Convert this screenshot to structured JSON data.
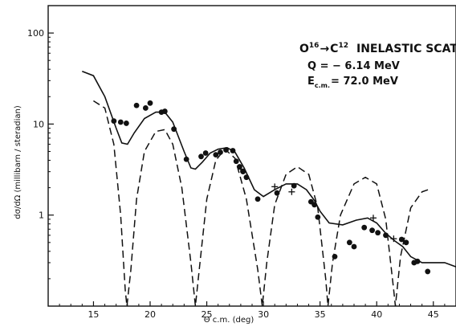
{
  "chart_data": {
    "type": "scatter",
    "x_axis": {
      "range": [
        11,
        47
      ],
      "ticks": [
        15,
        20,
        25,
        30,
        35,
        40,
        45
      ],
      "label": "Θ c.m.   (deg)"
    },
    "y_axis": {
      "scale": "log",
      "range": [
        0.1,
        200
      ],
      "ticks": [
        1,
        10,
        100
      ],
      "tick_labels": [
        "1",
        "10",
        "100"
      ],
      "label": "dσ/dΩ  (millibarn / steradian)"
    },
    "annotations": {
      "reaction": "O",
      "reaction_sup1": "16",
      "arrow": "→",
      "product": "C",
      "product_sup": "12",
      "title_rest": "INELASTIC SCATTERING",
      "q_value": "Q = − 6.14 MeV",
      "energy_label": "E",
      "energy_sub": "c.m.",
      "energy_value": "= 72.0 MeV"
    },
    "series": [
      {
        "kind": "solid-curve",
        "points": [
          [
            14,
            38
          ],
          [
            15,
            34
          ],
          [
            16,
            20
          ],
          [
            17,
            9
          ],
          [
            17.5,
            6.2
          ],
          [
            18,
            6
          ],
          [
            18.6,
            8
          ],
          [
            19.5,
            11.5
          ],
          [
            20.5,
            13.5
          ],
          [
            21.3,
            13.5
          ],
          [
            22,
            10.5
          ],
          [
            23,
            5
          ],
          [
            23.6,
            3.3
          ],
          [
            24,
            3.2
          ],
          [
            24.6,
            3.8
          ],
          [
            25.3,
            4.8
          ],
          [
            26,
            5.3
          ],
          [
            26.8,
            5.5
          ],
          [
            27.5,
            4.9
          ],
          [
            28.3,
            3.3
          ],
          [
            29.2,
            1.9
          ],
          [
            30,
            1.6
          ],
          [
            31,
            1.9
          ],
          [
            32,
            2.2
          ],
          [
            33,
            2.2
          ],
          [
            33.8,
            1.9
          ],
          [
            34.5,
            1.45
          ],
          [
            35,
            1.1
          ],
          [
            35.8,
            0.82
          ],
          [
            37,
            0.78
          ],
          [
            38.2,
            0.88
          ],
          [
            39.2,
            0.93
          ],
          [
            40,
            0.82
          ],
          [
            40.8,
            0.63
          ],
          [
            41.6,
            0.52
          ],
          [
            42.3,
            0.45
          ],
          [
            43,
            0.35
          ],
          [
            44,
            0.3
          ],
          [
            45,
            0.3
          ],
          [
            46,
            0.3
          ],
          [
            47,
            0.27
          ]
        ]
      },
      {
        "kind": "dashed-curve",
        "points": [
          [
            15,
            18
          ],
          [
            16,
            15
          ],
          [
            16.8,
            6
          ],
          [
            17.4,
            1
          ],
          [
            17.8,
            0.15
          ],
          [
            17.95,
            0.1
          ],
          [
            18.3,
            0.25
          ],
          [
            18.8,
            1.5
          ],
          [
            19.5,
            5
          ],
          [
            20.5,
            8.3
          ],
          [
            21.3,
            8.7
          ],
          [
            22,
            6
          ],
          [
            22.8,
            2
          ],
          [
            23.6,
            0.3
          ],
          [
            24,
            0.1
          ],
          [
            24.4,
            0.3
          ],
          [
            25,
            1.5
          ],
          [
            25.8,
            4
          ],
          [
            26.6,
            5.3
          ],
          [
            27.5,
            4.2
          ],
          [
            28.5,
            1.5
          ],
          [
            29.5,
            0.25
          ],
          [
            29.9,
            0.1
          ],
          [
            30.3,
            0.3
          ],
          [
            31,
            1.3
          ],
          [
            32,
            2.8
          ],
          [
            33,
            3.4
          ],
          [
            34,
            2.8
          ],
          [
            34.8,
            1.2
          ],
          [
            35.5,
            0.2
          ],
          [
            35.7,
            0.1
          ],
          [
            36.1,
            0.3
          ],
          [
            36.8,
            1
          ],
          [
            38,
            2.2
          ],
          [
            39,
            2.6
          ],
          [
            40,
            2.2
          ],
          [
            40.8,
            0.9
          ],
          [
            41.5,
            0.15
          ],
          [
            41.65,
            0.1
          ],
          [
            42.1,
            0.35
          ],
          [
            43,
            1.2
          ],
          [
            44,
            1.8
          ],
          [
            44.8,
            1.95
          ]
        ]
      },
      {
        "kind": "dots",
        "points": [
          [
            16.8,
            10.8
          ],
          [
            17.4,
            10.5
          ],
          [
            17.9,
            10.2
          ],
          [
            18.8,
            16
          ],
          [
            19.6,
            15
          ],
          [
            20,
            17
          ],
          [
            21,
            13.5
          ],
          [
            21.3,
            13.8
          ],
          [
            22.1,
            8.8
          ],
          [
            23.2,
            4.1
          ],
          [
            24.5,
            4.4
          ],
          [
            24.9,
            4.8
          ],
          [
            25.8,
            4.6
          ],
          [
            26.2,
            4.9
          ],
          [
            26.7,
            5.2
          ],
          [
            27.3,
            5.1
          ],
          [
            27.6,
            3.9
          ],
          [
            27.9,
            3.4
          ],
          [
            28.2,
            3
          ],
          [
            28.5,
            2.6
          ],
          [
            29.5,
            1.5
          ],
          [
            31.2,
            1.75
          ],
          [
            32.7,
            2.1
          ],
          [
            34.2,
            1.4
          ],
          [
            34.5,
            1.3
          ],
          [
            34.8,
            0.95
          ],
          [
            36.3,
            0.35
          ],
          [
            37.6,
            0.5
          ],
          [
            38,
            0.45
          ],
          [
            38.9,
            0.73
          ],
          [
            39.6,
            0.68
          ],
          [
            40.1,
            0.64
          ],
          [
            40.8,
            0.6
          ],
          [
            42.2,
            0.54
          ],
          [
            42.6,
            0.5
          ],
          [
            43.3,
            0.3
          ],
          [
            43.6,
            0.31
          ],
          [
            44.5,
            0.24
          ]
        ]
      },
      {
        "kind": "crosses",
        "points": [
          [
            28,
            3.2
          ],
          [
            31,
            2.05
          ],
          [
            32.5,
            1.8
          ],
          [
            39.7,
            0.93
          ],
          [
            41.5,
            0.55
          ]
        ]
      }
    ]
  }
}
